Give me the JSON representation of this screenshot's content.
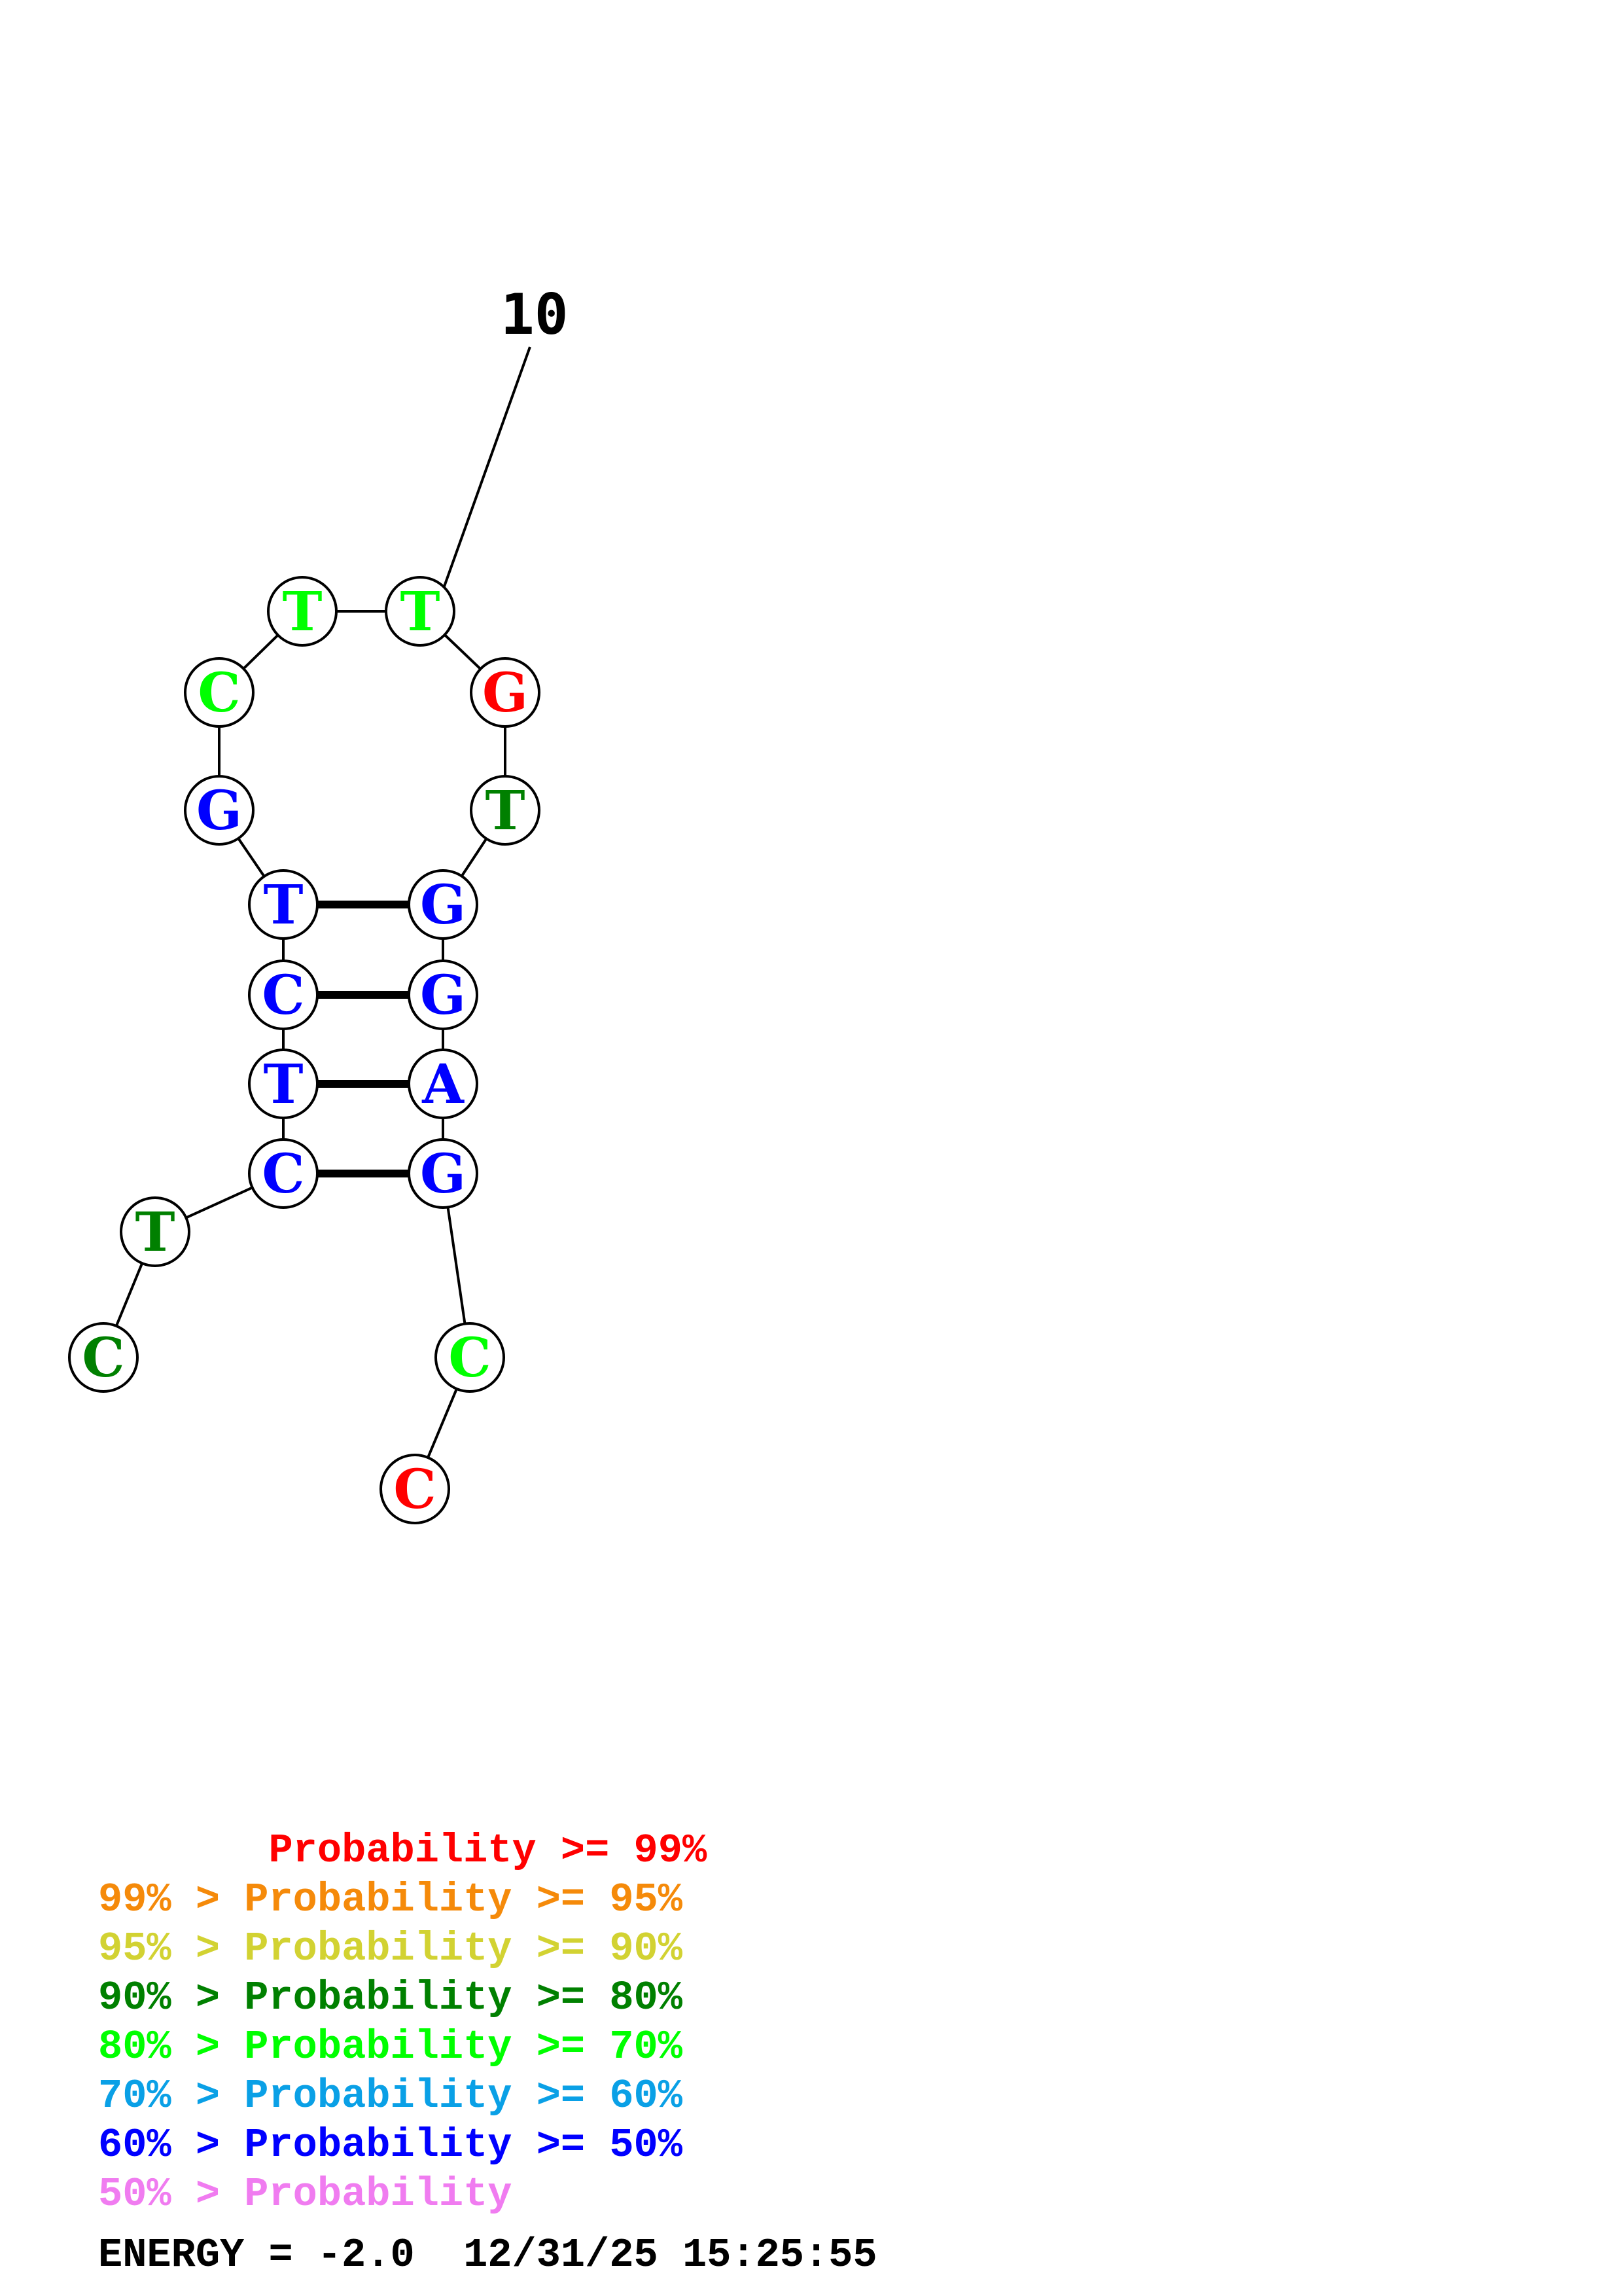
{
  "structure": {
    "index_label": "10",
    "nucleotides": [
      {
        "letter": "C",
        "color": "#008000"
      },
      {
        "letter": "T",
        "color": "#008000"
      },
      {
        "letter": "C",
        "color": "#0000ff"
      },
      {
        "letter": "T",
        "color": "#0000ff"
      },
      {
        "letter": "C",
        "color": "#0000ff"
      },
      {
        "letter": "T",
        "color": "#0000ff"
      },
      {
        "letter": "G",
        "color": "#0000ff"
      },
      {
        "letter": "C",
        "color": "#00ff00"
      },
      {
        "letter": "T",
        "color": "#00ff00"
      },
      {
        "letter": "T",
        "color": "#00ff00"
      },
      {
        "letter": "G",
        "color": "#ff0000"
      },
      {
        "letter": "T",
        "color": "#008000"
      },
      {
        "letter": "G",
        "color": "#0000ff"
      },
      {
        "letter": "G",
        "color": "#0000ff"
      },
      {
        "letter": "A",
        "color": "#0000ff"
      },
      {
        "letter": "G",
        "color": "#0000ff"
      },
      {
        "letter": "C",
        "color": "#00ff00"
      },
      {
        "letter": "C",
        "color": "#ff0000"
      }
    ],
    "base_pairs": [
      [
        3,
        16
      ],
      [
        4,
        15
      ],
      [
        5,
        14
      ],
      [
        6,
        13
      ]
    ]
  },
  "legend": [
    {
      "prefix": "       ",
      "text": "Probability >= 99%",
      "color": "#ff0000"
    },
    {
      "prefix": "99% > ",
      "text": "Probability >= 95%",
      "color": "#f58a0a"
    },
    {
      "prefix": "95% > ",
      "text": "Probability >= 90%",
      "color": "#d2d232"
    },
    {
      "prefix": "90% > ",
      "text": "Probability >= 80%",
      "color": "#008000"
    },
    {
      "prefix": "80% > ",
      "text": "Probability >= 70%",
      "color": "#00ff00"
    },
    {
      "prefix": "70% > ",
      "text": "Probability >= 60%",
      "color": "#0aa0e6"
    },
    {
      "prefix": "60% > ",
      "text": "Probability >= 50%",
      "color": "#0000ff"
    },
    {
      "prefix": "50% > ",
      "text": "Probability",
      "color": "#f07cf0"
    }
  ],
  "energy_text": "ENERGY = -2.0  12/31/25 15:25:55"
}
